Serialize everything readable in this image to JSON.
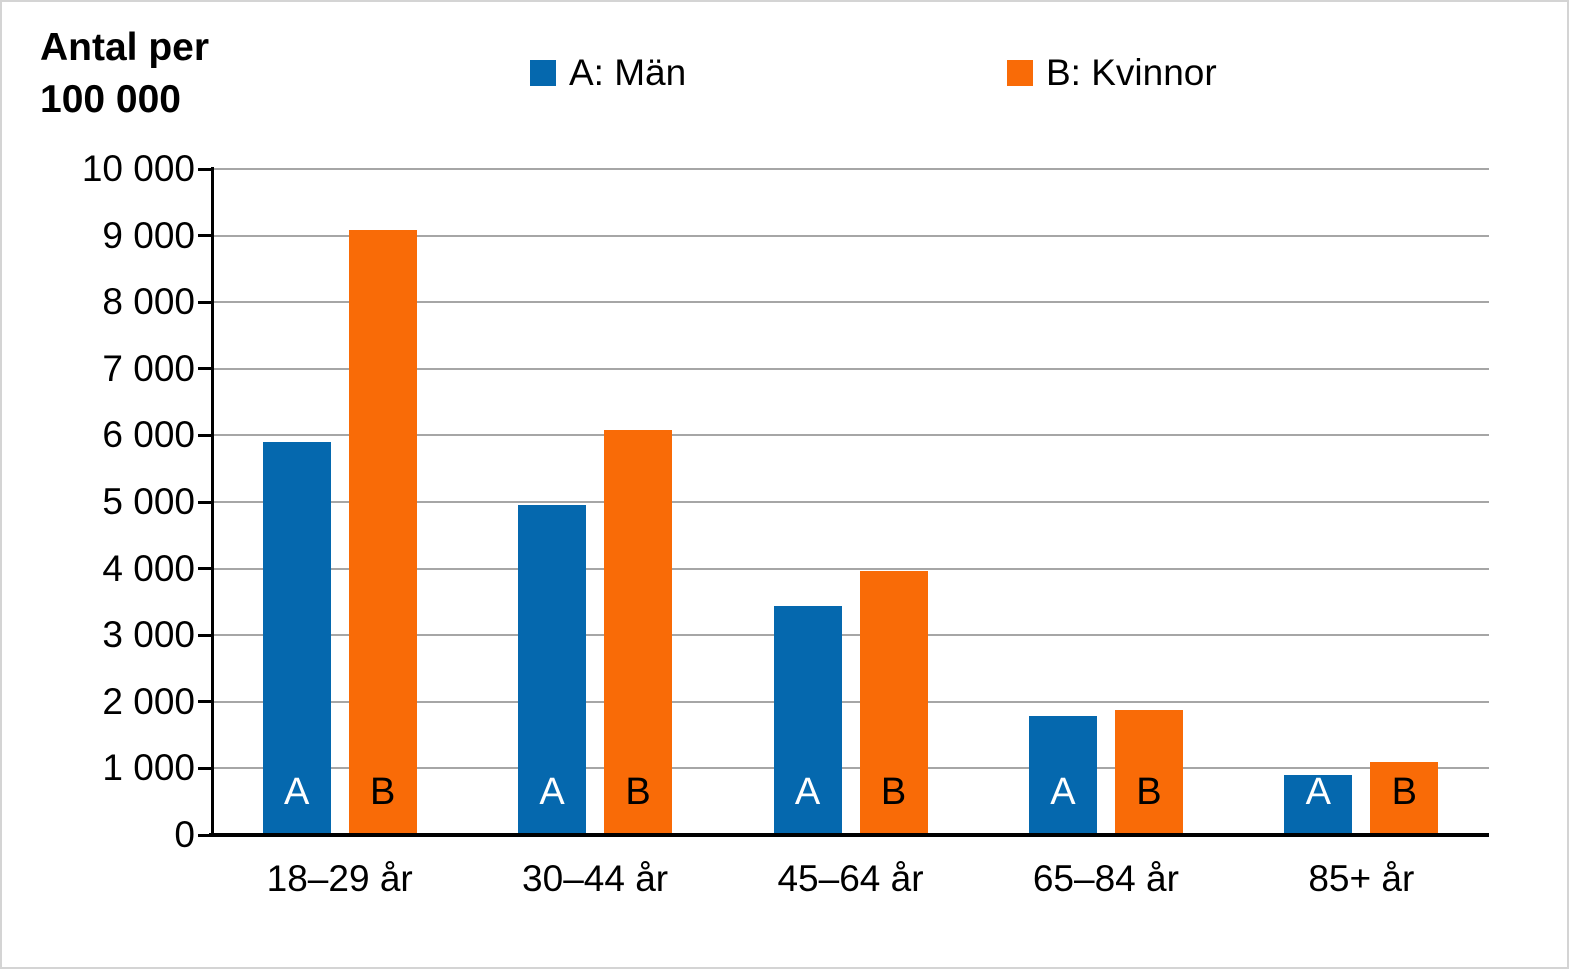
{
  "title": {
    "line1": "Antal per",
    "line2": "100 000"
  },
  "legend": [
    {
      "id": "A",
      "label": "A: Män",
      "color": "#0568ae"
    },
    {
      "id": "B",
      "label": "B: Kvinnor",
      "color": "#f96b07"
    }
  ],
  "chart_data": {
    "type": "bar",
    "categories": [
      "18–29 år",
      "30–44 år",
      "45–64 år",
      "65–84 år",
      "85+ år"
    ],
    "series": [
      {
        "name": "A: Män",
        "bar_letter": "A",
        "color": "#0568ae",
        "letter_color": "#ffffff",
        "values": [
          5900,
          4950,
          3440,
          1780,
          900
        ]
      },
      {
        "name": "B: Kvinnor",
        "bar_letter": "B",
        "color": "#f96b07",
        "letter_color": "#000000",
        "values": [
          9080,
          6080,
          3960,
          1870,
          1100
        ]
      }
    ],
    "title": "",
    "xlabel": "",
    "ylabel": "Antal per 100 000",
    "ylim": [
      0,
      10000
    ],
    "ytick_step": 1000,
    "ytick_labels": [
      "0",
      "1 000",
      "2 000",
      "3 000",
      "4 000",
      "5 000",
      "6 000",
      "7 000",
      "8 000",
      "9 000",
      "10 000"
    ],
    "grid": true,
    "gridline_color": "#a6a6a6",
    "axis_color": "#000000",
    "legend_position": "top"
  }
}
